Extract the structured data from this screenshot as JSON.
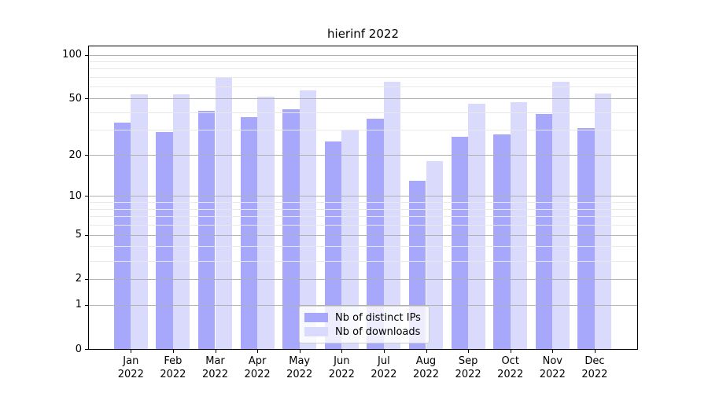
{
  "chart_data": {
    "type": "bar",
    "title": "hierinf 2022",
    "categories": [
      "Jan 2022",
      "Feb 2022",
      "Mar 2022",
      "Apr 2022",
      "May 2022",
      "Jun 2022",
      "Jul 2022",
      "Aug 2022",
      "Sep 2022",
      "Oct 2022",
      "Nov 2022",
      "Dec 2022"
    ],
    "x_tick_months": [
      "Jan",
      "Feb",
      "Mar",
      "Apr",
      "May",
      "Jun",
      "Jul",
      "Aug",
      "Sep",
      "Oct",
      "Nov",
      "Dec"
    ],
    "x_tick_year": "2022",
    "series": [
      {
        "name": "Nb of distinct IPs",
        "color": "#a7a7fb",
        "values": [
          34,
          29,
          41,
          37,
          42,
          25,
          36,
          13,
          27,
          28,
          39,
          31
        ]
      },
      {
        "name": "Nb of downloads",
        "color": "#dadafc",
        "values": [
          53,
          53,
          70,
          51,
          57,
          30,
          65,
          18,
          46,
          47,
          65,
          54
        ]
      }
    ],
    "yscale": "log1p",
    "ylim": [
      0,
      114
    ],
    "y_major_ticks": [
      0,
      1,
      2,
      5,
      10,
      20,
      50,
      100
    ],
    "y_tick_labels": [
      "0",
      "1",
      "2",
      "5",
      "10",
      "20",
      "50",
      "100"
    ],
    "y_minor_ticks": [
      3,
      4,
      6,
      7,
      8,
      9,
      30,
      40,
      60,
      70,
      80,
      90
    ],
    "grid": true,
    "grid_above_bars": true,
    "legend_position": "lower center",
    "colors": {
      "major_grid": "#b0b0b0",
      "minor_grid": "#e8e8e8",
      "axis": "#000000",
      "background": "#ffffff",
      "text": "#000000"
    }
  }
}
